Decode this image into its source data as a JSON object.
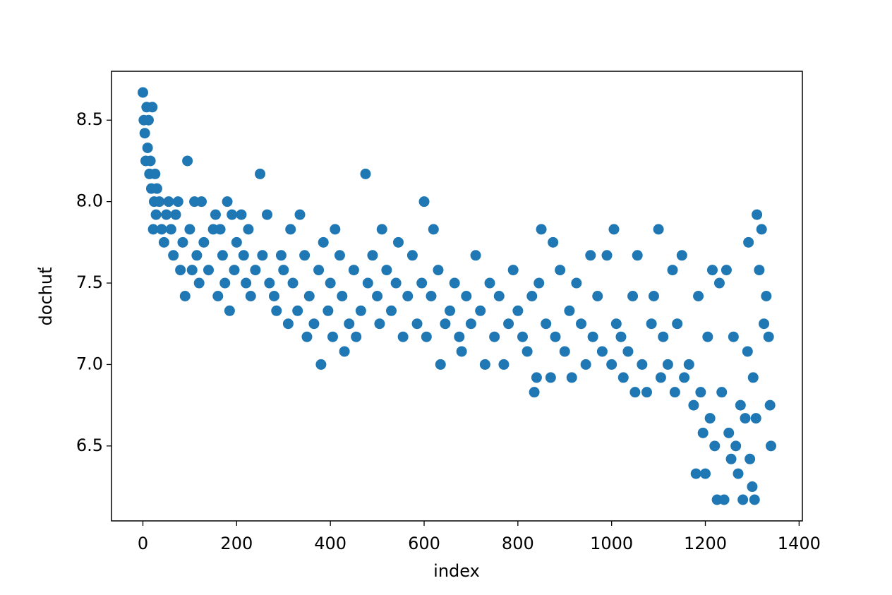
{
  "chart_data": {
    "type": "scatter",
    "xlabel": "index",
    "ylabel": "dochuť",
    "xlim": [
      -67,
      1407
    ],
    "ylim": [
      6.04,
      8.8
    ],
    "xticks": [
      0,
      200,
      400,
      600,
      800,
      1000,
      1200,
      1400
    ],
    "yticks": [
      6.5,
      {
        "value": 7,
        "label": "7.0"
      },
      7.5,
      {
        "value": 8,
        "label": "8.0"
      },
      8.5
    ],
    "grid": false,
    "color": "#1f77b4",
    "x": [
      0,
      2,
      4,
      6,
      8,
      10,
      12,
      14,
      16,
      18,
      20,
      22,
      24,
      26,
      28,
      30,
      35,
      40,
      45,
      50,
      55,
      60,
      65,
      70,
      75,
      80,
      85,
      90,
      95,
      100,
      105,
      110,
      115,
      120,
      125,
      130,
      140,
      150,
      155,
      160,
      165,
      170,
      175,
      180,
      185,
      190,
      195,
      200,
      210,
      215,
      220,
      225,
      230,
      240,
      250,
      255,
      265,
      270,
      280,
      285,
      295,
      300,
      310,
      315,
      320,
      330,
      335,
      345,
      350,
      355,
      365,
      375,
      380,
      385,
      395,
      400,
      405,
      410,
      420,
      425,
      430,
      440,
      450,
      455,
      465,
      475,
      480,
      490,
      500,
      505,
      510,
      520,
      530,
      540,
      545,
      555,
      565,
      575,
      585,
      595,
      600,
      605,
      615,
      620,
      630,
      635,
      645,
      655,
      665,
      675,
      680,
      690,
      700,
      710,
      720,
      730,
      740,
      750,
      760,
      770,
      780,
      790,
      800,
      810,
      820,
      830,
      835,
      840,
      845,
      850,
      860,
      870,
      875,
      880,
      890,
      900,
      910,
      915,
      925,
      935,
      945,
      955,
      960,
      970,
      980,
      990,
      1000,
      1005,
      1010,
      1020,
      1025,
      1035,
      1045,
      1050,
      1055,
      1065,
      1075,
      1085,
      1090,
      1100,
      1105,
      1110,
      1120,
      1130,
      1135,
      1140,
      1150,
      1155,
      1165,
      1175,
      1180,
      1185,
      1190,
      1195,
      1200,
      1205,
      1210,
      1215,
      1220,
      1225,
      1230,
      1235,
      1240,
      1245,
      1250,
      1255,
      1260,
      1265,
      1270,
      1275,
      1280,
      1285,
      1290,
      1295,
      1300,
      1305,
      1310,
      1315,
      1320,
      1325,
      1330,
      1335,
      1338,
      1340,
      1302,
      1308,
      1292
    ],
    "y": [
      8.67,
      8.5,
      8.42,
      8.25,
      8.58,
      8.33,
      8.5,
      8.17,
      8.25,
      8.08,
      8.58,
      7.83,
      8.0,
      8.17,
      7.92,
      8.08,
      8.0,
      7.83,
      7.75,
      7.92,
      8.0,
      7.83,
      7.67,
      7.92,
      8.0,
      7.58,
      7.75,
      7.42,
      8.25,
      7.83,
      7.58,
      8.0,
      7.67,
      7.5,
      8.0,
      7.75,
      7.58,
      7.83,
      7.92,
      7.42,
      7.83,
      7.67,
      7.5,
      8.0,
      7.33,
      7.92,
      7.58,
      7.75,
      7.92,
      7.67,
      7.5,
      7.83,
      7.42,
      7.58,
      8.17,
      7.67,
      7.92,
      7.5,
      7.42,
      7.33,
      7.67,
      7.58,
      7.25,
      7.83,
      7.5,
      7.33,
      7.92,
      7.67,
      7.17,
      7.42,
      7.25,
      7.58,
      7.0,
      7.75,
      7.33,
      7.5,
      7.17,
      7.83,
      7.67,
      7.42,
      7.08,
      7.25,
      7.58,
      7.17,
      7.33,
      8.17,
      7.5,
      7.67,
      7.42,
      7.25,
      7.83,
      7.58,
      7.33,
      7.5,
      7.75,
      7.17,
      7.42,
      7.67,
      7.25,
      7.5,
      8.0,
      7.17,
      7.42,
      7.83,
      7.58,
      7.0,
      7.25,
      7.33,
      7.5,
      7.17,
      7.08,
      7.42,
      7.25,
      7.67,
      7.33,
      7.0,
      7.5,
      7.17,
      7.42,
      7.0,
      7.25,
      7.58,
      7.33,
      7.17,
      7.08,
      7.42,
      6.83,
      6.92,
      7.5,
      7.83,
      7.25,
      6.92,
      7.75,
      7.17,
      7.58,
      7.08,
      7.33,
      6.92,
      7.5,
      7.25,
      7.0,
      7.67,
      7.17,
      7.42,
      7.08,
      7.67,
      7.0,
      7.83,
      7.25,
      7.17,
      6.92,
      7.08,
      7.42,
      6.83,
      7.67,
      7.0,
      6.83,
      7.25,
      7.42,
      7.83,
      6.92,
      7.17,
      7.0,
      7.58,
      6.83,
      7.25,
      7.67,
      6.92,
      7.0,
      6.75,
      6.33,
      7.42,
      6.83,
      6.58,
      6.33,
      7.17,
      6.67,
      7.58,
      6.5,
      6.17,
      7.5,
      6.83,
      6.17,
      7.58,
      6.58,
      6.42,
      7.17,
      6.5,
      6.33,
      6.75,
      6.17,
      6.67,
      7.08,
      6.42,
      6.25,
      6.17,
      7.92,
      7.58,
      7.83,
      7.25,
      7.42,
      7.17,
      6.75,
      6.5,
      6.92,
      6.67,
      7.75
    ]
  }
}
